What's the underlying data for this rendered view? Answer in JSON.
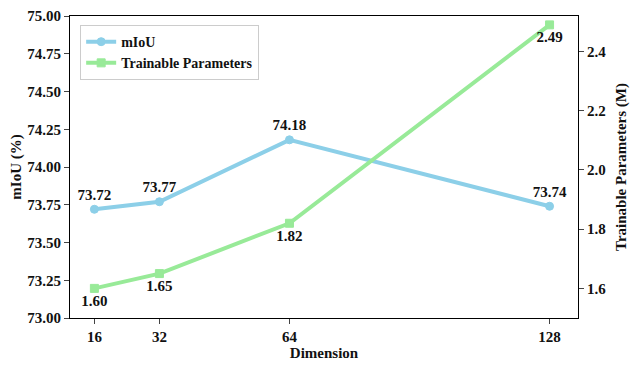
{
  "chart_data": {
    "type": "line",
    "x_label": "Dimension",
    "y_label": "mIoU (%)",
    "y2_label": "Trainable Parameters (M)",
    "x": [
      16,
      32,
      64,
      128
    ],
    "xlim": [
      10,
      135
    ],
    "xticks": [
      16,
      32,
      64,
      128
    ],
    "ylim": [
      73.0,
      75.0
    ],
    "yticks": [
      {
        "value": 73.0,
        "label": "73.00"
      },
      {
        "value": 73.25,
        "label": "73.25"
      },
      {
        "value": 73.5,
        "label": "73.50"
      },
      {
        "value": 73.75,
        "label": "73.75"
      },
      {
        "value": 74.0,
        "label": "74.00"
      },
      {
        "value": 74.25,
        "label": "74.25"
      },
      {
        "value": 74.5,
        "label": "74.50"
      },
      {
        "value": 74.75,
        "label": "74.75"
      },
      {
        "value": 75.0,
        "label": "75.00"
      }
    ],
    "y2lim": [
      1.5,
      2.52
    ],
    "y2ticks": [
      1.6,
      1.8,
      {
        "value": 2.0,
        "label": "2.0"
      },
      2.2,
      2.4
    ],
    "legend": "upper left",
    "grid": false,
    "data_labels": true,
    "series": [
      {
        "name": "mIoU",
        "color": "#8ccfe8",
        "marker": "circle",
        "values": [
          73.72,
          73.77,
          74.18,
          73.74
        ]
      },
      {
        "name": "Trainable Parameters",
        "color": "#98ea98",
        "marker": "square",
        "axis": "y2",
        "values": [
          1.6,
          1.65,
          1.82,
          2.49
        ],
        "value_labels": [
          "1.60",
          "1.65",
          "1.82",
          "2.49"
        ]
      }
    ]
  }
}
